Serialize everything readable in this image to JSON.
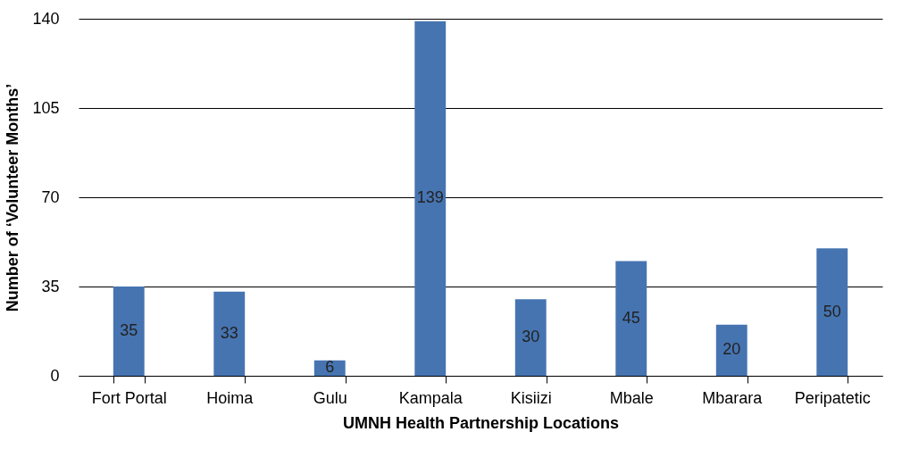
{
  "chart_data": {
    "type": "bar",
    "xlabel": "UMNH Health Partnership Locations",
    "ylabel": "Number of ‘Volunteer Months’",
    "categories": [
      "Fort Portal",
      "Hoima",
      "Gulu",
      "Kampala",
      "Kisiizi",
      "Mbale",
      "Mbarara",
      "Peripatetic"
    ],
    "values": [
      35,
      33,
      6,
      139,
      30,
      45,
      20,
      50
    ],
    "color": "#4674b1",
    "ylim": [
      0,
      140
    ],
    "yticks": [
      0,
      35,
      70,
      105,
      140
    ],
    "grid": "y",
    "data_labels": true
  }
}
